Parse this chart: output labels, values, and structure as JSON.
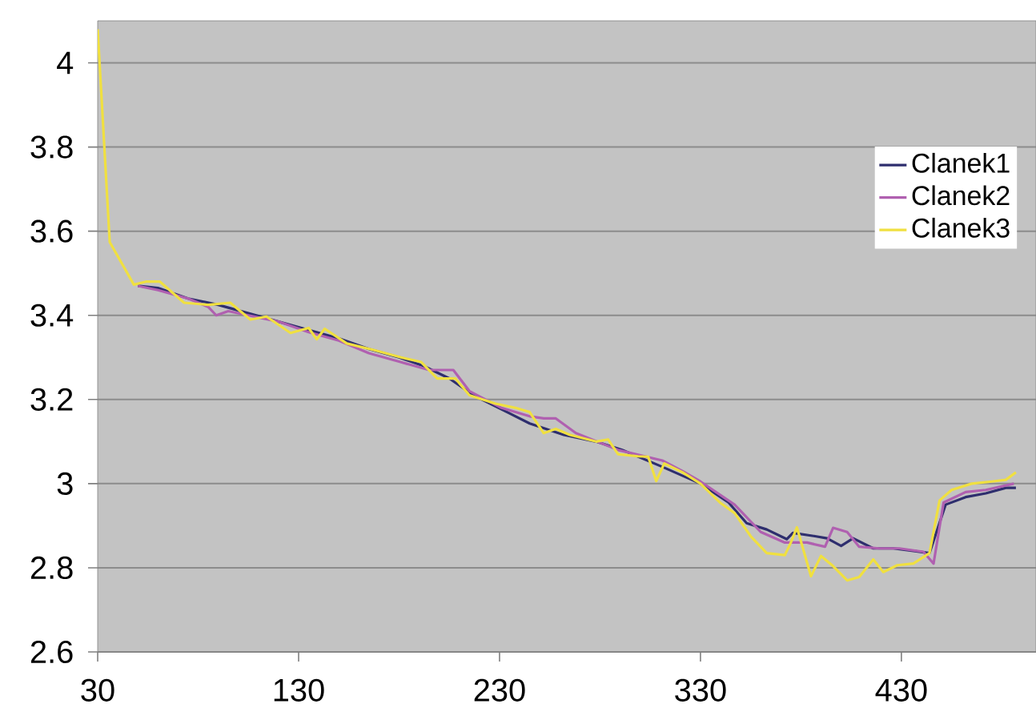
{
  "chart_data": {
    "type": "line",
    "xlim": [
      30,
      497
    ],
    "ylim": [
      2.6,
      4.1
    ],
    "xticks": [
      30,
      130,
      230,
      330,
      430
    ],
    "yticks": [
      2.6,
      2.8,
      {
        "value": 3,
        "label": "3"
      },
      3.2,
      3.4,
      3.6,
      3.8,
      {
        "value": 4,
        "label": "4"
      }
    ],
    "grid": "y",
    "legend": "right",
    "marker": "none",
    "line_style": "solid",
    "series": [
      {
        "name": "Clanek1",
        "color": "#2e2e6e",
        "x": [
          50,
          60,
          75,
          90,
          105,
          120,
          135,
          150,
          165,
          180,
          192,
          205,
          217,
          235,
          245,
          262,
          278,
          291,
          311,
          330,
          344,
          353,
          363,
          373,
          376,
          387,
          393,
          400,
          406,
          416,
          426,
          436,
          444,
          452,
          462,
          472,
          482,
          487
        ],
        "values": [
          3.47,
          3.465,
          3.44,
          3.425,
          3.405,
          3.385,
          3.365,
          3.345,
          3.32,
          3.3,
          3.28,
          3.25,
          3.21,
          3.167,
          3.143,
          3.116,
          3.1,
          3.08,
          3.04,
          3.0,
          2.955,
          2.906,
          2.891,
          2.868,
          2.883,
          2.875,
          2.87,
          2.852,
          2.87,
          2.846,
          2.846,
          2.84,
          2.835,
          2.95,
          2.968,
          2.977,
          2.99,
          2.99
        ]
      },
      {
        "name": "Clanek2",
        "color": "#b060b0",
        "x": [
          50,
          60,
          75,
          85,
          89,
          95,
          105,
          120,
          135,
          150,
          165,
          180,
          195,
          207,
          215,
          231,
          245,
          252,
          258,
          268,
          289,
          311,
          321,
          330,
          347,
          360,
          372,
          383,
          392,
          396,
          403,
          409,
          419,
          429,
          441,
          446,
          451,
          462,
          472,
          486
        ],
        "values": [
          3.47,
          3.46,
          3.44,
          3.42,
          3.4,
          3.41,
          3.4,
          3.385,
          3.36,
          3.34,
          3.31,
          3.29,
          3.27,
          3.27,
          3.22,
          3.18,
          3.16,
          3.155,
          3.155,
          3.12,
          3.08,
          3.055,
          3.03,
          3.005,
          2.95,
          2.885,
          2.86,
          2.86,
          2.85,
          2.895,
          2.885,
          2.85,
          2.846,
          2.846,
          2.838,
          2.81,
          2.955,
          2.98,
          2.985,
          3.0
        ]
      },
      {
        "name": "Clanek3",
        "color": "#f0e040",
        "x": [
          30,
          36,
          48,
          54,
          61,
          73,
          85,
          96,
          106,
          114,
          126,
          135,
          139,
          143,
          154,
          167,
          181,
          191,
          199,
          208,
          215,
          228,
          238,
          245,
          252,
          258,
          265,
          278,
          284,
          289,
          299,
          304,
          308,
          312,
          321,
          330,
          340,
          347,
          355,
          363,
          372,
          375,
          378,
          385,
          390,
          396,
          403,
          409,
          416,
          421,
          428,
          436,
          444,
          449,
          455,
          465,
          475,
          482,
          487
        ],
        "values": [
          4.08,
          3.574,
          3.473,
          3.48,
          3.48,
          3.43,
          3.425,
          3.43,
          3.39,
          3.397,
          3.358,
          3.37,
          3.343,
          3.368,
          3.333,
          3.318,
          3.3,
          3.289,
          3.25,
          3.25,
          3.21,
          3.19,
          3.18,
          3.17,
          3.12,
          3.13,
          3.116,
          3.1,
          3.105,
          3.07,
          3.065,
          3.064,
          3.006,
          3.048,
          3.027,
          3.0,
          2.954,
          2.93,
          2.875,
          2.835,
          2.83,
          2.86,
          2.896,
          2.78,
          2.828,
          2.804,
          2.77,
          2.778,
          2.82,
          2.79,
          2.806,
          2.81,
          2.835,
          2.96,
          2.985,
          3.0,
          3.005,
          3.009,
          3.027
        ]
      }
    ]
  }
}
